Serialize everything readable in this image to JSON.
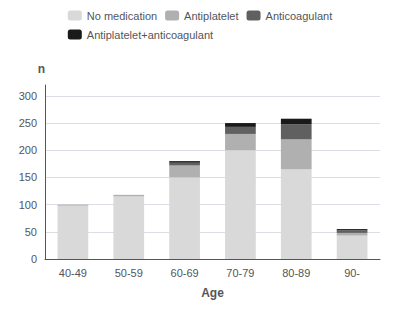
{
  "chart_data": {
    "type": "bar",
    "stacked": true,
    "categories": [
      "40-49",
      "50-59",
      "60-69",
      "70-79",
      "80-89",
      "90-"
    ],
    "series": [
      {
        "name": "No medication",
        "color": "#d9d9d9",
        "values": [
          98,
          115,
          150,
          200,
          165,
          43
        ]
      },
      {
        "name": "Antiplatelet",
        "color": "#b0b0b0",
        "values": [
          2,
          3,
          22,
          30,
          55,
          5
        ]
      },
      {
        "name": "Anticoagulant",
        "color": "#606060",
        "values": [
          0,
          0,
          5,
          13,
          28,
          5
        ]
      },
      {
        "name": "Antiplatelet+anticoagulant",
        "color": "#1a1a1a",
        "values": [
          0,
          0,
          3,
          7,
          10,
          2
        ]
      }
    ],
    "xlabel": "Age",
    "ylabel": "n",
    "ylim": [
      0,
      320
    ],
    "yticks": [
      0,
      50,
      100,
      150,
      200,
      250,
      300
    ],
    "grid": true,
    "legend": "top"
  }
}
